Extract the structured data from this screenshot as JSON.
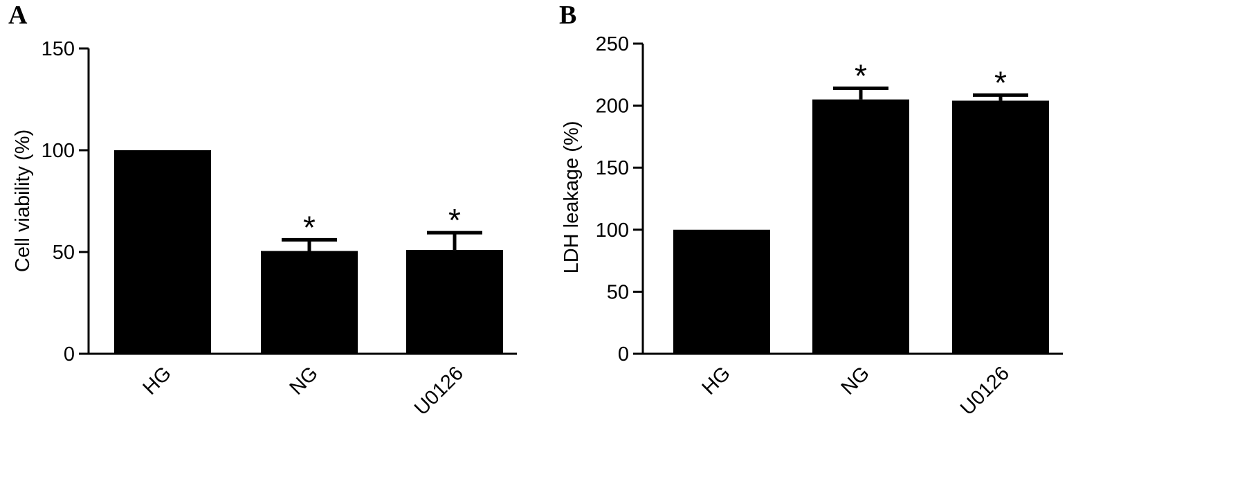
{
  "chart_data": [
    {
      "panel": "A",
      "type": "bar",
      "categories": [
        "HG",
        "NG",
        "U0126"
      ],
      "values": [
        100,
        50.5,
        51
      ],
      "errors": [
        0,
        5.5,
        8.5
      ],
      "significance": [
        "",
        "*",
        "*"
      ],
      "ylabel": "Cell viability (%)",
      "ylim": [
        0,
        150
      ],
      "yticks": [
        0,
        50,
        100,
        150
      ],
      "color": "#000000"
    },
    {
      "panel": "B",
      "type": "bar",
      "categories": [
        "HG",
        "NG",
        "U0126"
      ],
      "values": [
        100,
        205,
        204
      ],
      "errors": [
        0,
        9,
        4.5
      ],
      "significance": [
        "",
        "*",
        "*"
      ],
      "ylabel": "LDH leakage (%)",
      "ylim": [
        0,
        250
      ],
      "yticks": [
        0,
        50,
        100,
        150,
        200,
        250
      ],
      "color": "#000000"
    }
  ]
}
